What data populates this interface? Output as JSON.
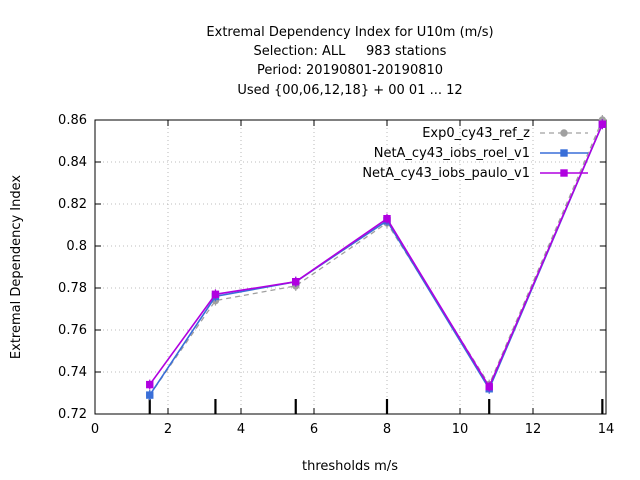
{
  "chart_data": {
    "type": "line",
    "title_lines": [
      "Extremal Dependency Index  for U10m (m/s)",
      "Selection: ALL     983 stations",
      "Period: 20190801-20190810",
      "Used {00,06,12,18} + 00 01 ... 12"
    ],
    "xlabel": "thresholds m/s",
    "ylabel": "Extremal Dependency Index",
    "xlim": [
      0,
      14
    ],
    "ylim": [
      0.72,
      0.86
    ],
    "xticks": [
      0,
      2,
      4,
      6,
      8,
      10,
      12,
      14
    ],
    "yticks": [
      0.72,
      0.74,
      0.76,
      0.78,
      0.8,
      0.82,
      0.84,
      0.86
    ],
    "ytick_labels": [
      "0.72",
      "0.74",
      "0.76",
      "0.78",
      "0.8",
      "0.82",
      "0.84",
      "0.86"
    ],
    "threshold_markers": [
      1.5,
      3.3,
      5.5,
      8,
      10.8,
      13.9
    ],
    "grid": true,
    "legend_position": "top-right",
    "series": [
      {
        "name": "Exp0_cy43_ref_z",
        "color": "#a0a0a0",
        "dashed": true,
        "marker": "circle",
        "x": [
          1.5,
          3.3,
          5.5,
          8,
          10.8,
          13.9
        ],
        "y": [
          0.729,
          0.774,
          0.781,
          0.811,
          0.734,
          0.86
        ]
      },
      {
        "name": "NetA_cy43_iobs_roel_v1",
        "color": "#3a6fd8",
        "dashed": false,
        "marker": "square",
        "x": [
          1.5,
          3.3,
          5.5,
          8,
          10.8,
          13.9
        ],
        "y": [
          0.729,
          0.776,
          0.783,
          0.812,
          0.732,
          0.858
        ]
      },
      {
        "name": "NetA_cy43_iobs_paulo_v1",
        "color": "#b000e0",
        "dashed": false,
        "marker": "square",
        "x": [
          1.5,
          3.3,
          5.5,
          8,
          10.8,
          13.9
        ],
        "y": [
          0.734,
          0.777,
          0.783,
          0.813,
          0.733,
          0.858
        ]
      }
    ]
  }
}
